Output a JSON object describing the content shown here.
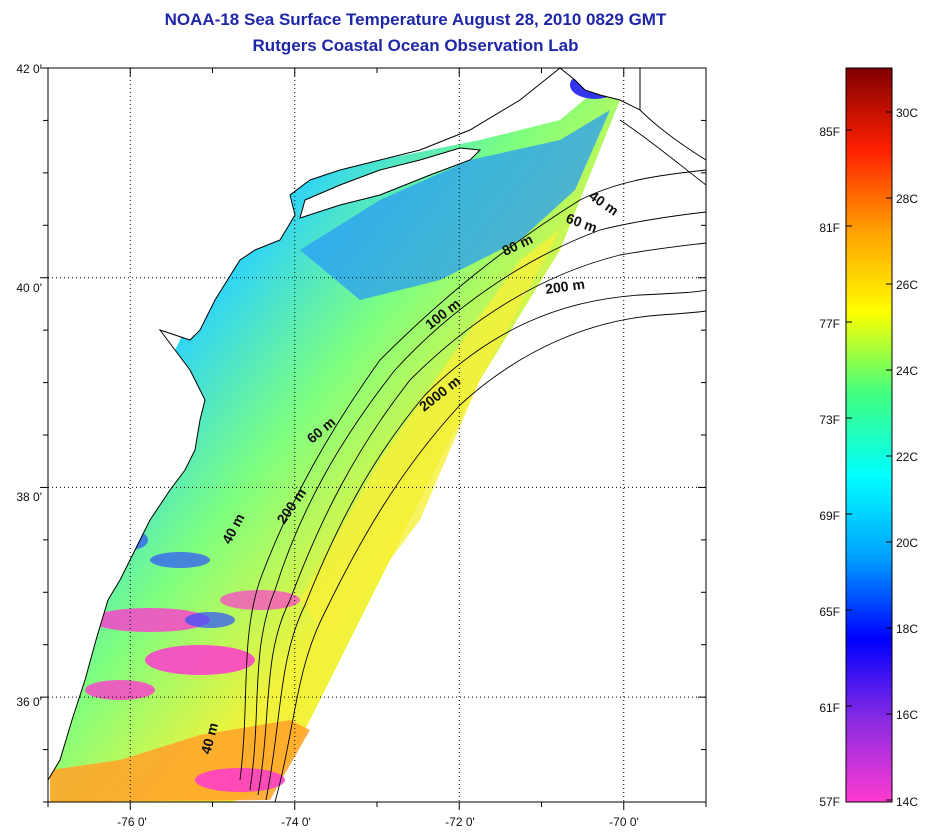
{
  "title": "NOAA-18 Sea Surface Temperature August 28, 2010 0829 GMT",
  "subtitle": "Rutgers Coastal Ocean Observation Lab",
  "map": {
    "lon_range": [
      -77.0,
      -69.0
    ],
    "lat_range": [
      35.0,
      42.0
    ],
    "x_ticks": [
      -76,
      -74,
      -72,
      -70
    ],
    "x_tick_labels": [
      "-76 0'",
      "-74 0'",
      "-72 0'",
      "-70 0'"
    ],
    "y_ticks": [
      36,
      38,
      40,
      42
    ],
    "y_tick_labels": [
      "36 0'",
      "38 0'",
      "40 0'",
      "42 0'"
    ],
    "grid": true,
    "grid_style": "dotted"
  },
  "isobath_labels": [
    "40 m",
    "60 m",
    "80 m",
    "200 m",
    "100 m",
    "2000 m",
    "60 m",
    "200 m",
    "40 m",
    "40 m"
  ],
  "colorbar": {
    "f_labels": [
      "85F",
      "81F",
      "77F",
      "73F",
      "69F",
      "65F",
      "61F",
      "57F"
    ],
    "c_labels": [
      "30C",
      "28C",
      "26C",
      "24C",
      "22C",
      "20C",
      "18C",
      "16C",
      "14C"
    ],
    "range_c": [
      14,
      31
    ],
    "colors": [
      "#ff3ad0",
      "#8a2be2",
      "#0000ff",
      "#00a0ff",
      "#00ffff",
      "#40ff80",
      "#ffff00",
      "#ffa000",
      "#ff2000",
      "#800000"
    ]
  },
  "colors": {
    "title": "#1f27a8",
    "land": "#ffffff",
    "coastline": "#000000",
    "cold_sst": "#2aa8ff",
    "mid_sst": "#7dff80",
    "warm_sst": "#f2f23a",
    "hot_sst": "#ffa62a",
    "cloud_mask": "#ff3ad0"
  }
}
